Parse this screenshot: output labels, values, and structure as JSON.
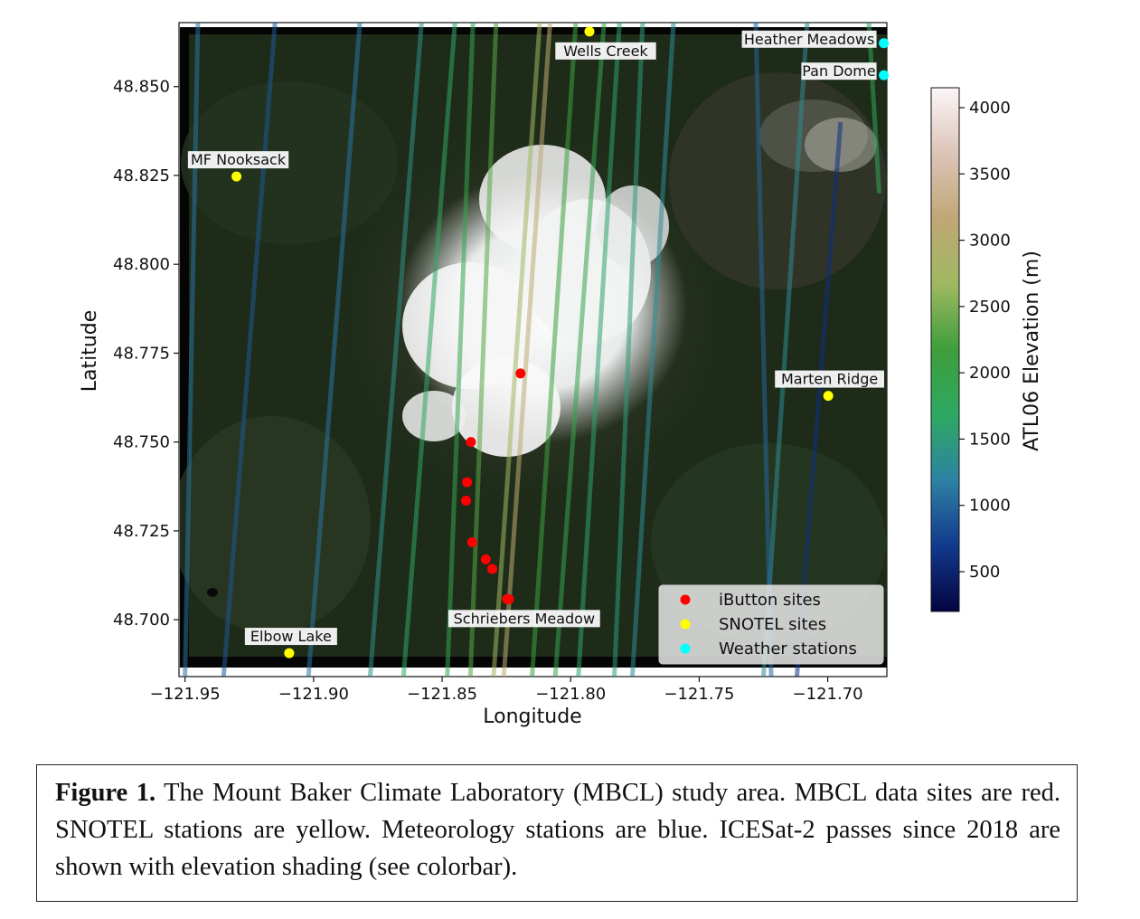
{
  "figure": {
    "chart_data": {
      "type": "scatter",
      "xlabel": "Longitude",
      "ylabel": "Latitude",
      "xlim": [
        -121.952,
        -121.677
      ],
      "ylim": [
        48.684,
        48.868
      ],
      "xticks": [
        -121.95,
        -121.9,
        -121.85,
        -121.8,
        -121.75,
        -121.7
      ],
      "xtick_labels": [
        "−121.95",
        "−121.90",
        "−121.85",
        "−121.80",
        "−121.75",
        "−121.70"
      ],
      "yticks": [
        48.7,
        48.725,
        48.75,
        48.775,
        48.8,
        48.825,
        48.85
      ],
      "ytick_labels": [
        "48.700",
        "48.725",
        "48.750",
        "48.775",
        "48.800",
        "48.825",
        "48.850"
      ],
      "legend_position": "lower-right",
      "series": [
        {
          "name": "iButton sites",
          "color": "#ff0000",
          "points": [
            {
              "x": -121.8195,
              "y": 48.7693
            },
            {
              "x": -121.8388,
              "y": 48.75
            },
            {
              "x": -121.8403,
              "y": 48.7387
            },
            {
              "x": -121.8407,
              "y": 48.7335
            },
            {
              "x": -121.8383,
              "y": 48.7218
            },
            {
              "x": -121.833,
              "y": 48.717
            },
            {
              "x": -121.8305,
              "y": 48.7143
            },
            {
              "x": -121.8248,
              "y": 48.7058
            },
            {
              "x": -121.824,
              "y": 48.7058
            }
          ]
        },
        {
          "name": "SNOTEL sites",
          "color": "#ffff00",
          "points": [
            {
              "x": -121.7927,
              "y": 48.8655
            },
            {
              "x": -121.93,
              "y": 48.8247
            },
            {
              "x": -121.6998,
              "y": 48.763
            },
            {
              "x": -121.9095,
              "y": 48.6906
            }
          ]
        },
        {
          "name": "Weather stations",
          "color": "#00ffff",
          "points": [
            {
              "x": -121.6782,
              "y": 48.8622
            },
            {
              "x": -121.6782,
              "y": 48.8532
            }
          ]
        }
      ],
      "annotations": [
        {
          "text": "Wells Creek",
          "x": -121.7927,
          "y": 48.8655,
          "anchor": "below"
        },
        {
          "text": "Heather Meadows",
          "x": -121.6782,
          "y": 48.8622,
          "anchor": "left"
        },
        {
          "text": "Pan Dome",
          "x": -121.6782,
          "y": 48.8532,
          "anchor": "left"
        },
        {
          "text": "MF Nooksack",
          "x": -121.93,
          "y": 48.8247,
          "anchor": "above"
        },
        {
          "text": "Marten Ridge",
          "x": -121.6998,
          "y": 48.763,
          "anchor": "above"
        },
        {
          "text": "Schriebers Meadow",
          "x": -121.8244,
          "y": 48.7058,
          "anchor": "below"
        },
        {
          "text": "Elbow Lake",
          "x": -121.9095,
          "y": 48.6906,
          "anchor": "above"
        }
      ],
      "colorbar": {
        "label": "ATL06 Elevation (m)",
        "range": [
          200,
          4150
        ],
        "ticks": [
          500,
          1000,
          1500,
          2000,
          2500,
          3000,
          3500,
          4000
        ],
        "colors": [
          "#040440",
          "#12398c",
          "#2d82a3",
          "#2ea862",
          "#3e9e3c",
          "#9fb860",
          "#c0a776",
          "#dcc4b8",
          "#fcf6f8"
        ]
      },
      "ground_tracks": [
        {
          "x1": -121.915,
          "y1": 48.868,
          "x2": -121.935,
          "y2": 48.684,
          "elev": 900
        },
        {
          "x1": -121.882,
          "y1": 48.868,
          "x2": -121.902,
          "y2": 48.684,
          "elev": 1100
        },
        {
          "x1": -121.858,
          "y1": 48.868,
          "x2": -121.878,
          "y2": 48.684,
          "elev": 1400
        },
        {
          "x1": -121.845,
          "y1": 48.868,
          "x2": -121.865,
          "y2": 48.684,
          "elev": 1700
        },
        {
          "x1": -121.838,
          "y1": 48.868,
          "x2": -121.848,
          "y2": 48.684,
          "elev": 1900
        },
        {
          "x1": -121.829,
          "y1": 48.868,
          "x2": -121.839,
          "y2": 48.684,
          "elev": 2300
        },
        {
          "x1": -121.812,
          "y1": 48.868,
          "x2": -121.83,
          "y2": 48.684,
          "elev": 2700
        },
        {
          "x1": -121.808,
          "y1": 48.868,
          "x2": -121.826,
          "y2": 48.684,
          "elev": 3100
        },
        {
          "x1": -121.815,
          "y1": 48.684,
          "x2": -121.798,
          "y2": 48.868,
          "elev": 2100
        },
        {
          "x1": -121.806,
          "y1": 48.684,
          "x2": -121.787,
          "y2": 48.868,
          "elev": 1900
        },
        {
          "x1": -121.797,
          "y1": 48.684,
          "x2": -121.781,
          "y2": 48.868,
          "elev": 1600
        },
        {
          "x1": -121.783,
          "y1": 48.684,
          "x2": -121.772,
          "y2": 48.868,
          "elev": 1500
        },
        {
          "x1": -121.776,
          "y1": 48.684,
          "x2": -121.76,
          "y2": 48.868,
          "elev": 1300
        },
        {
          "x1": -121.725,
          "y1": 48.684,
          "x2": -121.708,
          "y2": 48.868,
          "elev": 1300
        },
        {
          "x1": -121.945,
          "y1": 48.868,
          "x2": -121.95,
          "y2": 48.684,
          "elev": 1100
        },
        {
          "x1": -121.728,
          "y1": 48.868,
          "x2": -121.722,
          "y2": 48.684,
          "elev": 1000
        },
        {
          "x1": -121.695,
          "y1": 48.84,
          "x2": -121.712,
          "y2": 48.684,
          "elev": 600
        },
        {
          "x1": -121.684,
          "y1": 48.868,
          "x2": -121.68,
          "y2": 48.82,
          "elev": 1800
        }
      ]
    }
  },
  "legend": {
    "items": [
      "iButton sites",
      "SNOTEL sites",
      "Weather stations"
    ]
  },
  "caption": {
    "label": "Figure 1.",
    "text": " The Mount Baker Climate Laboratory (MBCL) study area. MBCL data sites are red. SNOTEL stations are yellow. Meteorology stations are blue. ICESat-2 passes since 2018 are shown with elevation shading (see colorbar)."
  }
}
